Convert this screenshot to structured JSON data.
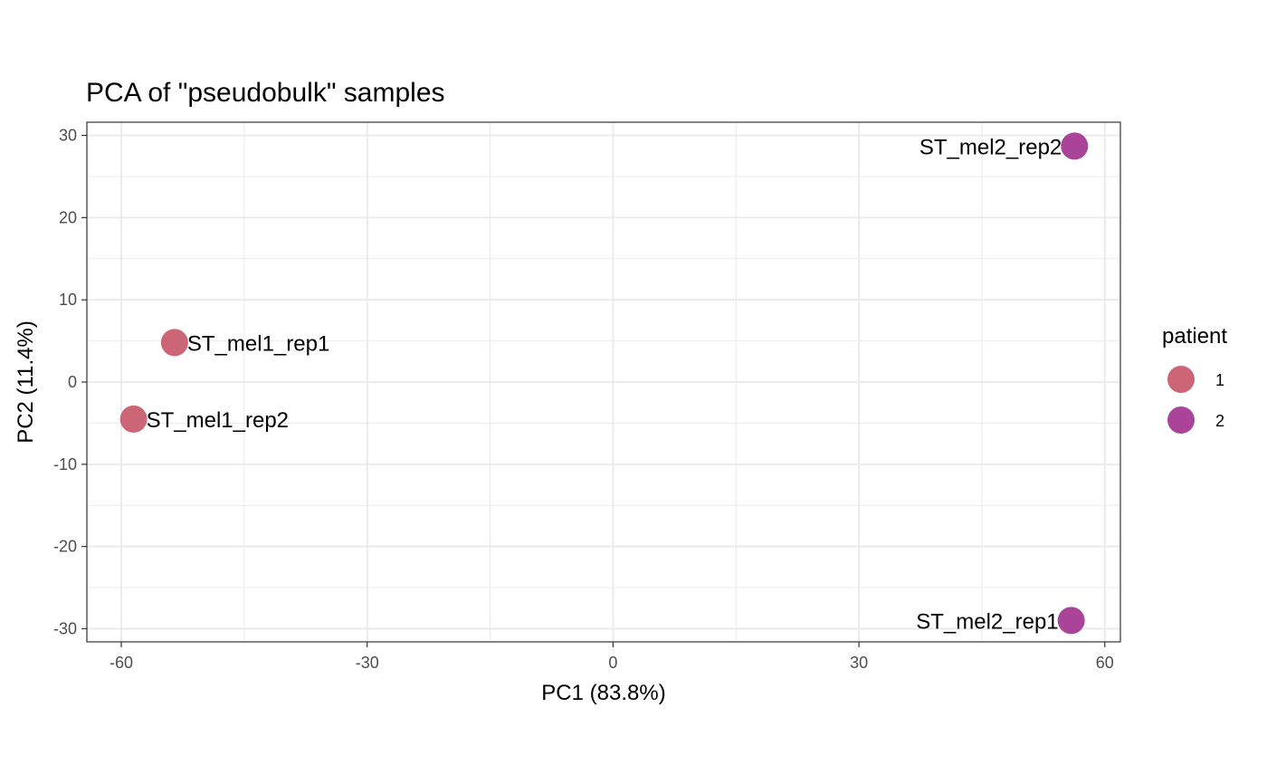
{
  "chart_data": {
    "type": "scatter",
    "title": "PCA of \"pseudobulk\" samples",
    "xlabel": "PC1 (83.8%)",
    "ylabel": "PC2 (11.4%)",
    "xlim": [
      -64.2,
      61.9
    ],
    "ylim": [
      -31.6,
      31.6
    ],
    "xticks": [
      -60,
      -30,
      0,
      30,
      60
    ],
    "xtick_labels": [
      "-60",
      "-30",
      "0",
      "30",
      "60"
    ],
    "yticks": [
      -30,
      -20,
      -10,
      0,
      10,
      20,
      30
    ],
    "ytick_labels": [
      "-30",
      "-20",
      "-10",
      "0",
      "10",
      "20",
      "30"
    ],
    "grid": true,
    "legend": {
      "title": "patient",
      "position": "right",
      "entries": [
        {
          "label": "1",
          "color": "#CC6677"
        },
        {
          "label": "2",
          "color": "#AA4499"
        }
      ]
    },
    "points": [
      {
        "label": "ST_mel1_rep1",
        "x": -53.5,
        "y": 4.8,
        "patient": "1",
        "color": "#CC6677"
      },
      {
        "label": "ST_mel1_rep2",
        "x": -58.5,
        "y": -4.5,
        "patient": "1",
        "color": "#CC6677"
      },
      {
        "label": "ST_mel2_rep2",
        "x": 56.3,
        "y": 28.7,
        "patient": "2",
        "color": "#AA4499"
      },
      {
        "label": "ST_mel2_rep1",
        "x": 55.9,
        "y": -29.0,
        "patient": "2",
        "color": "#AA4499"
      }
    ]
  }
}
